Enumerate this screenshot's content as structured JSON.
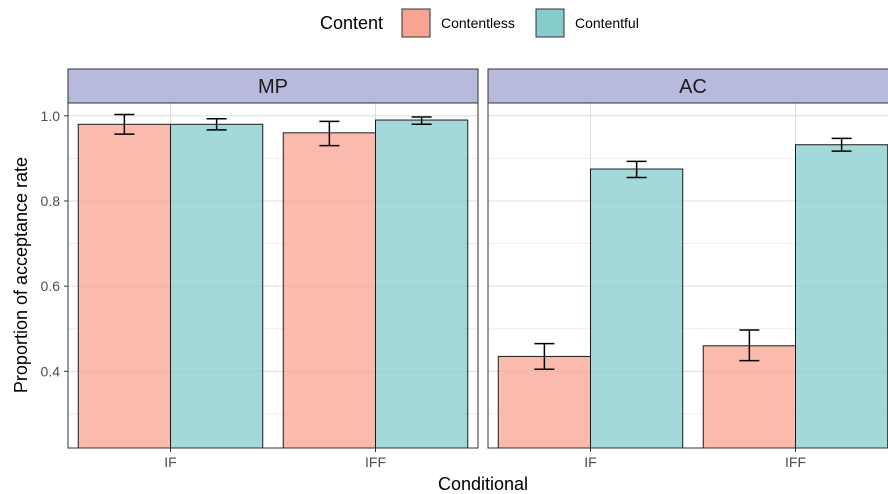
{
  "chart_data": {
    "type": "bar",
    "legend": {
      "title": "Content",
      "position": "top",
      "entries": [
        {
          "label": "Contentless",
          "color": "#f8a493"
        },
        {
          "label": "Contentful",
          "color": "#86cccc"
        }
      ]
    },
    "categories": [
      "IF",
      "IFF"
    ],
    "xlabel": "Conditional",
    "ylabel": "Proportion of acceptance rate",
    "ylim": [
      0.22,
      1.03
    ],
    "yticks": [
      "0.4",
      "0.6",
      "0.8",
      "1.0"
    ],
    "grid": true,
    "panels": [
      {
        "title": "MP",
        "series": [
          {
            "name": "Contentless",
            "values": [
              0.98,
              0.96
            ],
            "error_low": [
              0.957,
              0.93
            ],
            "error_high": [
              1.003,
              0.987
            ]
          },
          {
            "name": "Contentful",
            "values": [
              0.98,
              0.99
            ],
            "error_low": [
              0.967,
              0.98
            ],
            "error_high": [
              0.993,
              0.997
            ]
          }
        ]
      },
      {
        "title": "AC",
        "series": [
          {
            "name": "Contentless",
            "values": [
              0.435,
              0.46
            ],
            "error_low": [
              0.405,
              0.425
            ],
            "error_high": [
              0.465,
              0.497
            ]
          },
          {
            "name": "Contentful",
            "values": [
              0.875,
              0.932
            ],
            "error_low": [
              0.855,
              0.917
            ],
            "error_high": [
              0.893,
              0.947
            ]
          }
        ]
      }
    ]
  }
}
